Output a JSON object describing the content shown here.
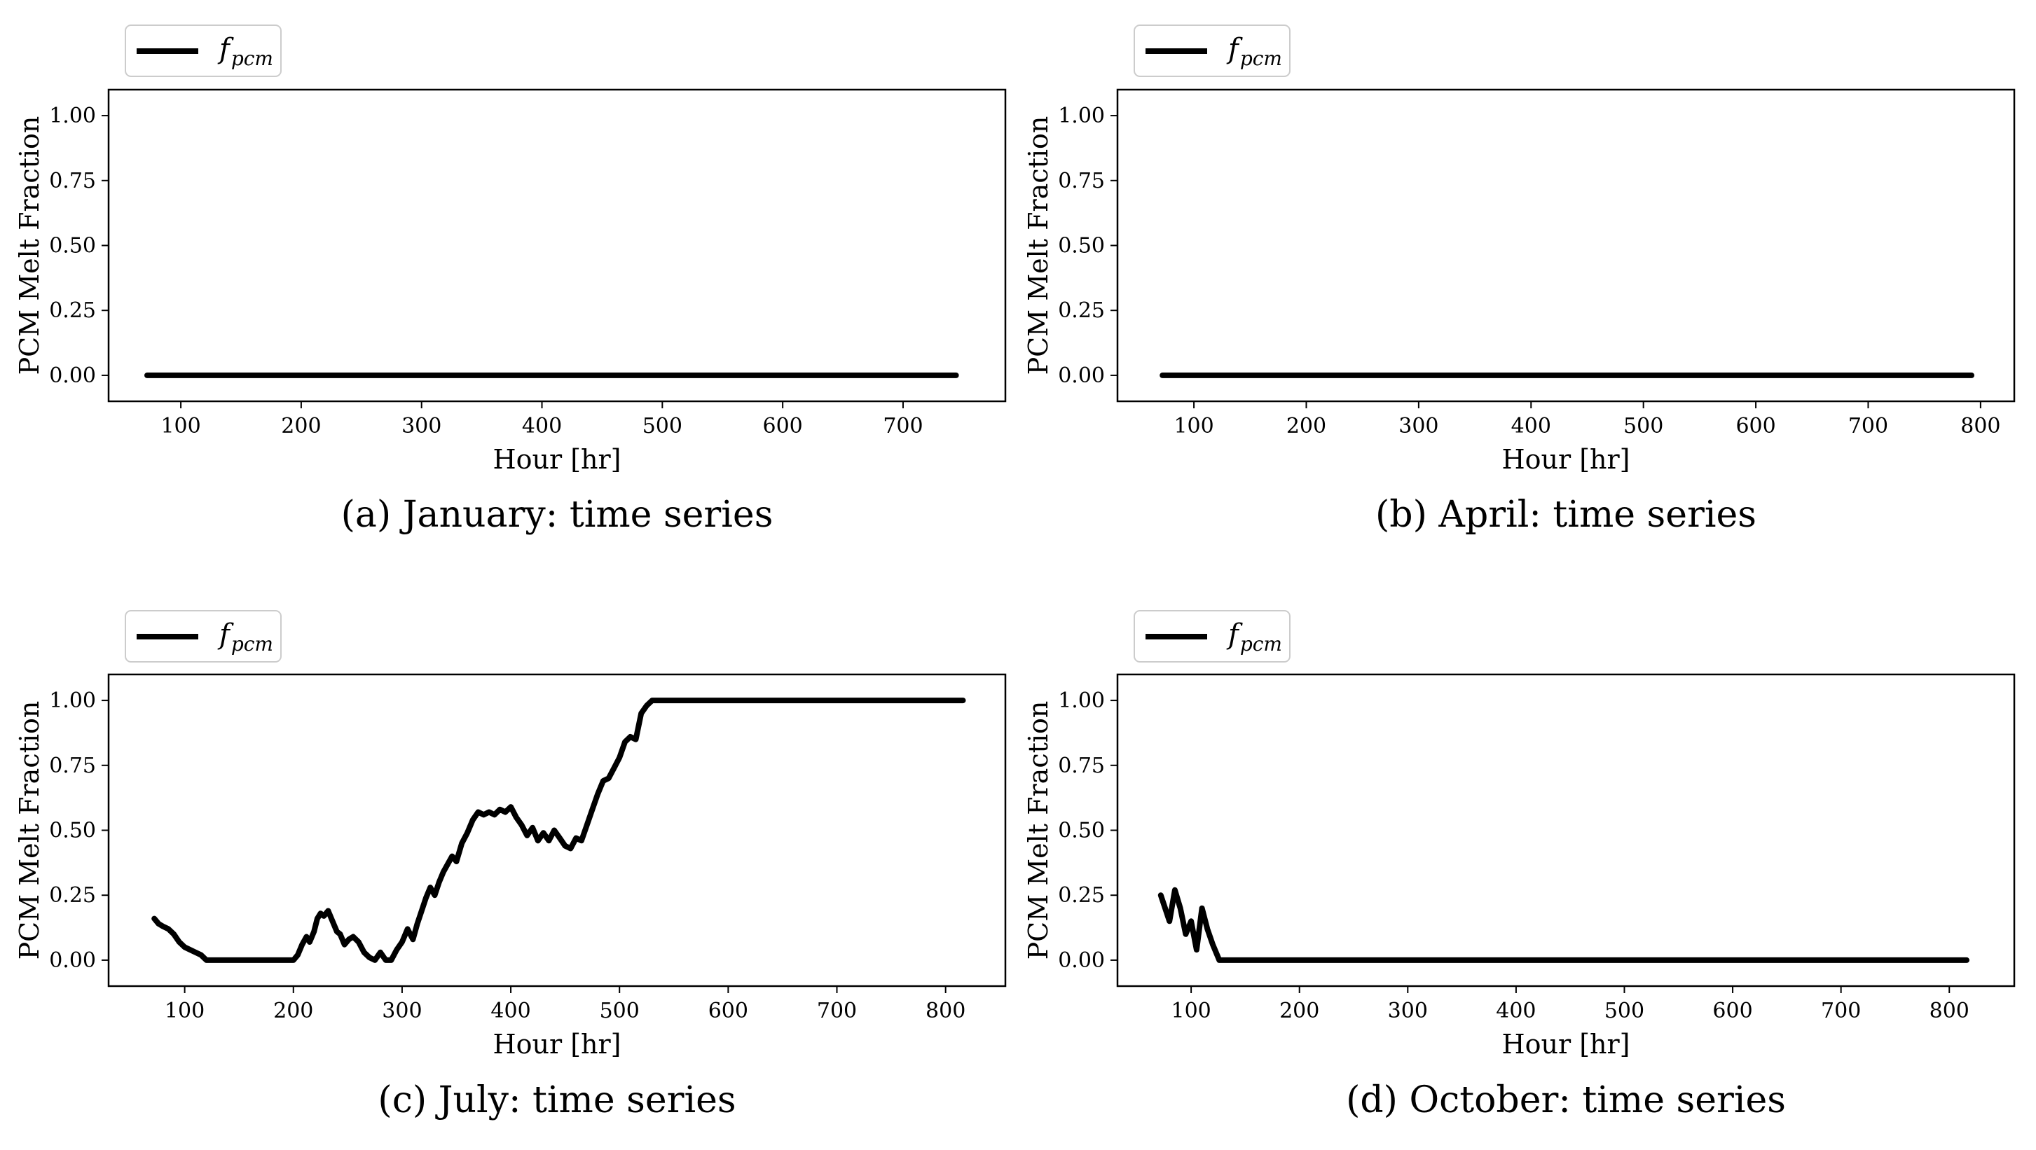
{
  "chart_data": [
    {
      "type": "line",
      "caption": "(a) January: time series",
      "xlabel": "Hour [hr]",
      "ylabel": "PCM Melt Fraction",
      "xlim": [
        40,
        785
      ],
      "ylim": [
        -0.1,
        1.1
      ],
      "xticks": [
        100,
        200,
        300,
        400,
        500,
        600,
        700
      ],
      "yticks": [
        0.0,
        0.25,
        0.5,
        0.75,
        1.0
      ],
      "ytick_labels": [
        "0.00",
        "0.25",
        "0.50",
        "0.75",
        "1.00"
      ],
      "grid": false,
      "legend": {
        "position": "top-left",
        "label_base": "f",
        "label_sub": "pcm"
      },
      "series": [
        {
          "label_base": "f",
          "label_sub": "pcm",
          "color": "#000000",
          "x": [
            72,
            744
          ],
          "y": [
            0,
            0
          ]
        }
      ]
    },
    {
      "type": "line",
      "caption": "(b) April: time series",
      "xlabel": "Hour [hr]",
      "ylabel": "PCM Melt Fraction",
      "xlim": [
        32,
        830
      ],
      "ylim": [
        -0.1,
        1.1
      ],
      "xticks": [
        100,
        200,
        300,
        400,
        500,
        600,
        700,
        800
      ],
      "yticks": [
        0.0,
        0.25,
        0.5,
        0.75,
        1.0
      ],
      "ytick_labels": [
        "0.00",
        "0.25",
        "0.50",
        "0.75",
        "1.00"
      ],
      "grid": false,
      "legend": {
        "position": "top-left",
        "label_base": "f",
        "label_sub": "pcm"
      },
      "series": [
        {
          "label_base": "f",
          "label_sub": "pcm",
          "color": "#000000",
          "x": [
            72,
            792
          ],
          "y": [
            0,
            0
          ]
        }
      ]
    },
    {
      "type": "line",
      "caption": "(c) July: time series",
      "xlabel": "Hour [hr]",
      "ylabel": "PCM Melt Fraction",
      "xlim": [
        30,
        855
      ],
      "ylim": [
        -0.1,
        1.1
      ],
      "xticks": [
        100,
        200,
        300,
        400,
        500,
        600,
        700,
        800
      ],
      "yticks": [
        0.0,
        0.25,
        0.5,
        0.75,
        1.0
      ],
      "ytick_labels": [
        "0.00",
        "0.25",
        "0.50",
        "0.75",
        "1.00"
      ],
      "grid": false,
      "legend": {
        "position": "top-left",
        "label_base": "f",
        "label_sub": "pcm"
      },
      "series": [
        {
          "label_base": "f",
          "label_sub": "pcm",
          "color": "#000000",
          "x": [
            72,
            76,
            80,
            85,
            90,
            95,
            100,
            105,
            110,
            115,
            120,
            125,
            140,
            160,
            180,
            200,
            204,
            208,
            212,
            215,
            219,
            222,
            225,
            228,
            232,
            236,
            240,
            243,
            247,
            251,
            255,
            260,
            265,
            270,
            275,
            280,
            285,
            290,
            295,
            300,
            305,
            310,
            314,
            318,
            322,
            326,
            330,
            334,
            338,
            342,
            346,
            350,
            355,
            360,
            365,
            370,
            375,
            380,
            385,
            390,
            395,
            400,
            405,
            410,
            415,
            420,
            425,
            430,
            435,
            440,
            445,
            450,
            455,
            460,
            465,
            470,
            475,
            480,
            485,
            490,
            495,
            500,
            505,
            510,
            515,
            520,
            525,
            530,
            535,
            540,
            545,
            600,
            700,
            816
          ],
          "y": [
            0.16,
            0.14,
            0.13,
            0.12,
            0.1,
            0.07,
            0.05,
            0.04,
            0.03,
            0.02,
            0.0,
            0.0,
            0.0,
            0.0,
            0.0,
            0.0,
            0.02,
            0.06,
            0.09,
            0.07,
            0.11,
            0.16,
            0.18,
            0.17,
            0.19,
            0.15,
            0.11,
            0.1,
            0.06,
            0.08,
            0.09,
            0.07,
            0.03,
            0.01,
            0.0,
            0.03,
            0.0,
            0.0,
            0.04,
            0.07,
            0.12,
            0.08,
            0.14,
            0.19,
            0.24,
            0.28,
            0.25,
            0.3,
            0.34,
            0.37,
            0.4,
            0.38,
            0.45,
            0.49,
            0.54,
            0.57,
            0.56,
            0.57,
            0.56,
            0.58,
            0.57,
            0.59,
            0.55,
            0.52,
            0.48,
            0.51,
            0.46,
            0.49,
            0.46,
            0.5,
            0.47,
            0.44,
            0.43,
            0.47,
            0.46,
            0.52,
            0.58,
            0.64,
            0.69,
            0.7,
            0.74,
            0.78,
            0.84,
            0.86,
            0.85,
            0.95,
            0.98,
            1.0,
            1.0,
            1.0,
            1.0,
            1.0,
            1.0,
            1.0
          ]
        }
      ]
    },
    {
      "type": "line",
      "caption": "(d) October: time series",
      "xlabel": "Hour [hr]",
      "ylabel": "PCM Melt Fraction",
      "xlim": [
        32,
        860
      ],
      "ylim": [
        -0.1,
        1.1
      ],
      "xticks": [
        100,
        200,
        300,
        400,
        500,
        600,
        700,
        800
      ],
      "yticks": [
        0.0,
        0.25,
        0.5,
        0.75,
        1.0
      ],
      "ytick_labels": [
        "0.00",
        "0.25",
        "0.50",
        "0.75",
        "1.00"
      ],
      "grid": false,
      "legend": {
        "position": "top-left",
        "label_base": "f",
        "label_sub": "pcm"
      },
      "series": [
        {
          "label_base": "f",
          "label_sub": "pcm",
          "color": "#000000",
          "x": [
            72,
            80,
            85,
            90,
            95,
            100,
            105,
            110,
            115,
            120,
            126,
            200,
            400,
            600,
            816
          ],
          "y": [
            0.25,
            0.15,
            0.27,
            0.2,
            0.1,
            0.15,
            0.04,
            0.2,
            0.12,
            0.06,
            0.0,
            0.0,
            0.0,
            0.0,
            0.0
          ]
        }
      ]
    }
  ]
}
